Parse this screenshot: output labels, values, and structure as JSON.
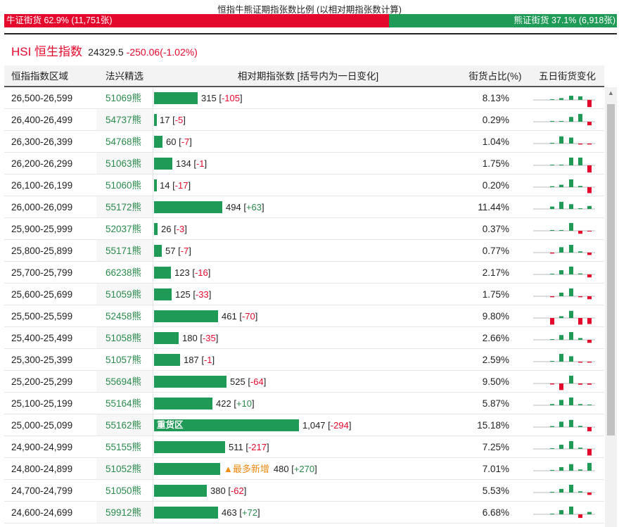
{
  "page_title": "恒指牛熊证期指张数比例 (以相对期指张数计算)",
  "ratio": {
    "bull_label": "牛证街货 62.9% (11,751张)",
    "bear_label": "熊证街货 37.1% (6,918张)",
    "bull_pct": 62.9,
    "bear_pct": 37.1,
    "bull_color": "#e4082d",
    "bear_color": "#1f9a57"
  },
  "hsi": {
    "name": "HSI 恒生指数",
    "price": "24329.5",
    "change": "-250.06(-1.02%)"
  },
  "table": {
    "headers": {
      "range": "恒指指数区域",
      "pick": "法兴精选",
      "count": "相对期指张数 [括号内为一日变化]",
      "ratio": "街货占比(%)",
      "trend": "五日街货变化"
    },
    "max_count": 1047,
    "rows": [
      {
        "range": "26,500-26,599",
        "pick": "51069熊",
        "count": 315,
        "count_text": "315",
        "change": "-105",
        "ratio": "8.13%",
        "note": "",
        "trend": [
          0,
          0.15,
          0.35,
          0.3,
          -0.6
        ]
      },
      {
        "range": "26,400-26,499",
        "pick": "54737熊",
        "count": 17,
        "count_text": "17",
        "change": "-5",
        "ratio": "0.29%",
        "note": "",
        "trend": [
          0,
          0,
          0.4,
          0.65,
          -0.3
        ]
      },
      {
        "range": "26,300-26,399",
        "pick": "54768熊",
        "count": 60,
        "count_text": "60",
        "change": "-7",
        "ratio": "1.04%",
        "note": "",
        "trend": [
          0.05,
          0.6,
          0.5,
          -0.08,
          -0.08
        ]
      },
      {
        "range": "26,200-26,299",
        "pick": "51063熊",
        "count": 134,
        "count_text": "134",
        "change": "-1",
        "ratio": "1.75%",
        "note": "",
        "trend": [
          0,
          0.05,
          0.65,
          0.65,
          -0.6
        ]
      },
      {
        "range": "26,100-26,199",
        "pick": "51060熊",
        "count": 14,
        "count_text": "14",
        "change": "-17",
        "ratio": "0.20%",
        "note": "",
        "trend": [
          0.08,
          0.2,
          0.65,
          0.1,
          -0.5
        ]
      },
      {
        "range": "26,000-26,099",
        "pick": "55172熊",
        "count": 494,
        "count_text": "494",
        "change": "+63",
        "ratio": "11.44%",
        "note": "",
        "trend": [
          0.2,
          0.6,
          0.4,
          0.05,
          0.25
        ]
      },
      {
        "range": "25,900-25,999",
        "pick": "52037熊",
        "count": 26,
        "count_text": "26",
        "change": "-3",
        "ratio": "0.37%",
        "note": "",
        "trend": [
          0,
          0,
          0.65,
          -0.25,
          -0.06
        ]
      },
      {
        "range": "25,800-25,899",
        "pick": "55171熊",
        "count": 57,
        "count_text": "57",
        "change": "-7",
        "ratio": "0.77%",
        "note": "",
        "trend": [
          -0.08,
          0.45,
          0.65,
          0.1,
          -0.2
        ]
      },
      {
        "range": "25,700-25,799",
        "pick": "66238熊",
        "count": 123,
        "count_text": "123",
        "change": "-16",
        "ratio": "2.17%",
        "note": "",
        "trend": [
          0.05,
          0.35,
          0.65,
          0.08,
          -0.25
        ]
      },
      {
        "range": "25,600-25,699",
        "pick": "51059熊",
        "count": 125,
        "count_text": "125",
        "change": "-33",
        "ratio": "1.75%",
        "note": "",
        "trend": [
          -0.08,
          0.3,
          0.65,
          -0.08,
          -0.25
        ]
      },
      {
        "range": "25,500-25,599",
        "pick": "52458熊",
        "count": 461,
        "count_text": "461",
        "change": "-70",
        "ratio": "9.80%",
        "note": "",
        "trend": [
          -0.55,
          0.15,
          0.6,
          -0.55,
          -0.5
        ]
      },
      {
        "range": "25,400-25,499",
        "pick": "51058熊",
        "count": 180,
        "count_text": "180",
        "change": "-35",
        "ratio": "2.66%",
        "note": "",
        "trend": [
          0.05,
          0.4,
          0.65,
          0.15,
          -0.25
        ]
      },
      {
        "range": "25,300-25,399",
        "pick": "51057熊",
        "count": 187,
        "count_text": "187",
        "change": "-1",
        "ratio": "2.59%",
        "note": "",
        "trend": [
          0,
          0.65,
          0.45,
          -0.08,
          -0.08
        ]
      },
      {
        "range": "25,200-25,299",
        "pick": "55694熊",
        "count": 525,
        "count_text": "525",
        "change": "-64",
        "ratio": "9.50%",
        "note": "",
        "trend": [
          -0.08,
          -0.55,
          0.65,
          -0.1,
          -0.1
        ]
      },
      {
        "range": "25,100-25,199",
        "pick": "55164熊",
        "count": 422,
        "count_text": "422",
        "change": "+10",
        "ratio": "5.87%",
        "note": "",
        "trend": [
          0.1,
          0.45,
          0.65,
          0.1,
          0.05
        ]
      },
      {
        "range": "25,000-25,099",
        "pick": "55162熊",
        "count": 1047,
        "count_text": "1,047",
        "change": "-294",
        "ratio": "15.18%",
        "note": "重货区",
        "trend": [
          0.08,
          0.45,
          0.6,
          0.1,
          -0.35
        ]
      },
      {
        "range": "24,900-24,999",
        "pick": "55155熊",
        "count": 511,
        "count_text": "511",
        "change": "-217",
        "ratio": "7.25%",
        "note": "",
        "trend": [
          0.05,
          0.35,
          0.65,
          0.1,
          -0.55
        ]
      },
      {
        "range": "24,800-24,899",
        "pick": "51052熊",
        "count": 480,
        "count_text": "480",
        "change": "+270",
        "ratio": "7.01%",
        "note": "▲最多新增",
        "trend": [
          0.05,
          0.3,
          0.55,
          0.1,
          0.65
        ]
      },
      {
        "range": "24,700-24,799",
        "pick": "51050熊",
        "count": 380,
        "count_text": "380",
        "change": "-62",
        "ratio": "5.53%",
        "note": "",
        "trend": [
          0.05,
          0.3,
          0.65,
          0.1,
          -0.2
        ]
      },
      {
        "range": "24,600-24,699",
        "pick": "59912熊",
        "count": 463,
        "count_text": "463",
        "change": "+72",
        "ratio": "6.68%",
        "note": "",
        "trend": [
          0.05,
          0.35,
          0.65,
          -0.3,
          0.2
        ]
      }
    ]
  }
}
